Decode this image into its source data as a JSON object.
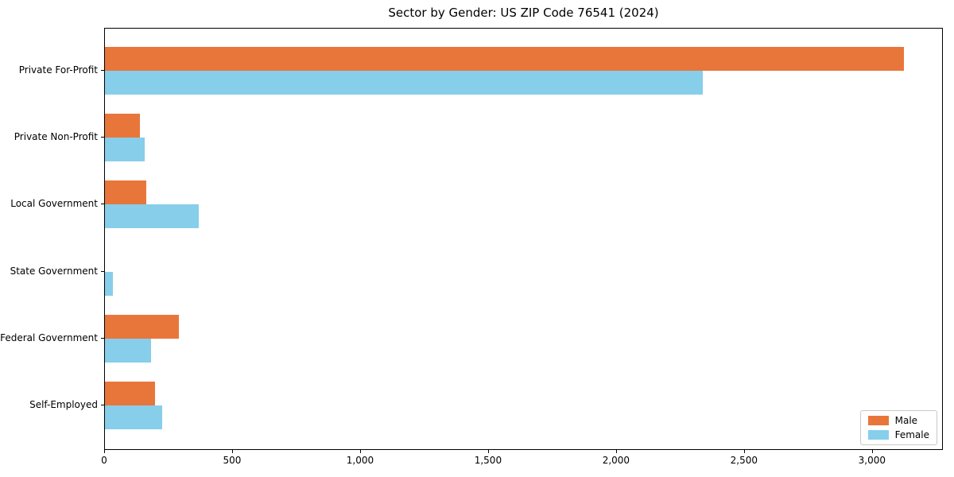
{
  "chart_data": {
    "type": "bar",
    "orientation": "horizontal",
    "title": "Sector by Gender: US ZIP Code 76541 (2024)",
    "categories": [
      "Private For-Profit",
      "Private Non-Profit",
      "Local Government",
      "State Government",
      "Federal Government",
      "Self-Employed"
    ],
    "series": [
      {
        "name": "Male",
        "color": "#e8763b",
        "values": [
          3120,
          135,
          160,
          0,
          290,
          195
        ]
      },
      {
        "name": "Female",
        "color": "#87ceeb",
        "values": [
          2335,
          155,
          365,
          30,
          180,
          225
        ]
      }
    ],
    "xlabel": "",
    "ylabel": "",
    "xlim": [
      0,
      3277
    ],
    "xticks": [
      0,
      500,
      1000,
      1500,
      2000,
      2500,
      3000
    ],
    "xtick_labels": [
      "0",
      "500",
      "1,000",
      "1,500",
      "2,000",
      "2,500",
      "3,000"
    ],
    "grid": false,
    "legend": {
      "position": "lower right",
      "entries": [
        "Male",
        "Female"
      ]
    },
    "colors": {
      "male": "#e8763b",
      "female": "#87ceeb",
      "axis": "#000000",
      "legend_border": "#c9c9c9",
      "background": "#ffffff"
    }
  }
}
